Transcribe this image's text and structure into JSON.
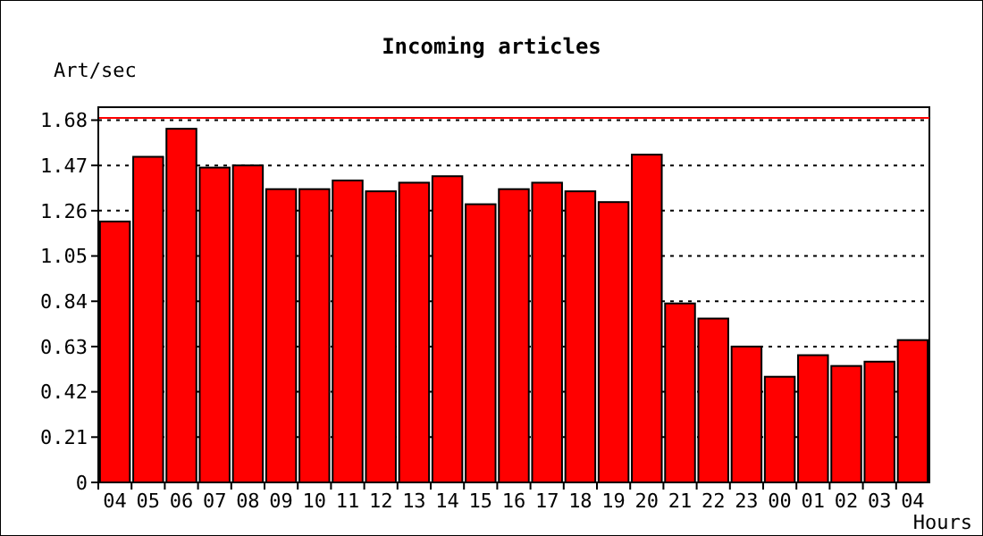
{
  "chart_data": {
    "type": "bar",
    "title": "Incoming articles",
    "xlabel": "Hours",
    "ylabel": "Art/sec",
    "categories": [
      "04",
      "05",
      "06",
      "07",
      "08",
      "09",
      "10",
      "11",
      "12",
      "13",
      "14",
      "15",
      "16",
      "17",
      "18",
      "19",
      "20",
      "21",
      "22",
      "23",
      "00",
      "01",
      "02",
      "03",
      "04"
    ],
    "values": [
      1.21,
      1.51,
      1.64,
      1.46,
      1.47,
      1.36,
      1.36,
      1.4,
      1.35,
      1.39,
      1.42,
      1.29,
      1.36,
      1.39,
      1.35,
      1.3,
      1.52,
      0.83,
      0.76,
      0.63,
      0.49,
      0.59,
      0.54,
      0.56,
      0.66
    ],
    "color": "#ff0000",
    "ylim": [
      0,
      1.74
    ],
    "yticks": [
      0,
      0.21,
      0.42,
      0.63,
      0.84,
      1.05,
      1.26,
      1.47,
      1.68
    ],
    "grid": "y",
    "ref_lines": [
      {
        "axis": "y",
        "value": 1.69,
        "color": "#ff0000"
      }
    ]
  }
}
